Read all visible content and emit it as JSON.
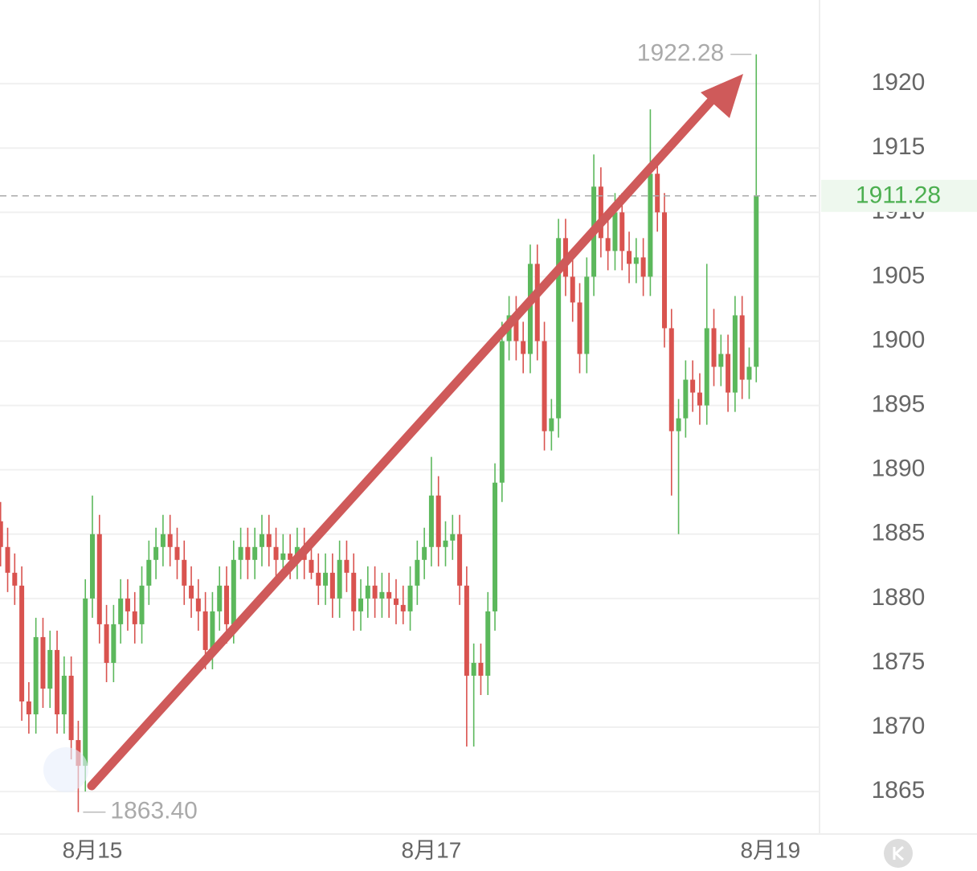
{
  "chart_data": {
    "type": "candlestick",
    "categories": [
      null,
      null,
      null,
      null,
      null,
      null,
      null,
      null,
      null,
      null,
      null,
      null,
      null,
      "8月15",
      null,
      null,
      null,
      null,
      null,
      null,
      null,
      null,
      null,
      null,
      null,
      null,
      null,
      null,
      null,
      null,
      null,
      null,
      null,
      null,
      null,
      null,
      null,
      null,
      null,
      null,
      null,
      null,
      null,
      null,
      null,
      null,
      null,
      null,
      null,
      null,
      null,
      null,
      null,
      null,
      null,
      null,
      null,
      null,
      null,
      null,
      null,
      "8月17",
      null,
      null,
      null,
      null,
      null,
      null,
      null,
      null,
      null,
      null,
      null,
      null,
      null,
      null,
      null,
      null,
      null,
      null,
      null,
      null,
      null,
      null,
      null,
      null,
      null,
      null,
      null,
      null,
      null,
      null,
      null,
      null,
      null,
      null,
      null,
      null,
      null,
      null,
      null,
      null,
      null,
      null,
      null,
      null,
      null,
      null,
      null,
      "8月19"
    ],
    "open": [
      1886,
      1884,
      1882,
      1881,
      1872,
      1871,
      1877,
      1873,
      1876,
      1871,
      1874,
      1869,
      1867,
      1880,
      1885,
      1878,
      1875,
      1878,
      1880,
      1879,
      1878,
      1881,
      1883,
      1884,
      1885,
      1884,
      1883,
      1881,
      1880,
      1879,
      1876,
      1879,
      1881,
      1878,
      1883,
      1884,
      1883,
      1884,
      1885,
      1884,
      1883,
      1883.5,
      1883,
      1884,
      1883,
      1882,
      1881,
      1882,
      1880,
      1883,
      1882,
      1879,
      1880,
      1881,
      1880,
      1880.5,
      1880,
      1879.5,
      1879,
      1881,
      1883,
      1884,
      1888,
      1884,
      1884.5,
      1885,
      1881,
      1874,
      1875,
      1874,
      1879,
      1889,
      1900,
      1902,
      1900,
      1899,
      1906,
      1900,
      1893,
      1894,
      1908,
      1905,
      1903,
      1899,
      1905,
      1912,
      1908,
      1907,
      1910,
      1907,
      1906,
      1906.5,
      1905,
      1913,
      1910,
      1901,
      1893,
      1894,
      1897,
      1896,
      1895,
      1901,
      1898,
      1899,
      1896,
      1902,
      1897,
      1898,
      null,
      null
    ],
    "high": [
      1887.5,
      1885.5,
      1883.5,
      1882.5,
      1873.5,
      1878.5,
      1878.5,
      1877.5,
      1877.5,
      1875.5,
      1875.5,
      1870.5,
      1881.5,
      1888,
      1886.5,
      1879.5,
      1879.5,
      1881.5,
      1881.5,
      1880.5,
      1882.5,
      1884.5,
      1885.5,
      1886.5,
      1886.5,
      1885.5,
      1884.5,
      1882.5,
      1881.5,
      1880.5,
      1880.5,
      1882.5,
      1882.5,
      1884.5,
      1885.5,
      1885.5,
      1885.5,
      1886.5,
      1886.5,
      1885.5,
      1885,
      1885,
      1885.5,
      1885.5,
      1884.5,
      1883.5,
      1883.5,
      1883.5,
      1884.5,
      1884.5,
      1883.5,
      1881.5,
      1882.5,
      1882.5,
      1882,
      1882,
      1881.5,
      1881,
      1882.5,
      1884.5,
      1885.5,
      1891,
      1889.5,
      1886,
      1886.5,
      1886.5,
      1882.5,
      1876.5,
      1876.5,
      1880.5,
      1890.5,
      1901.5,
      1903.5,
      1903.5,
      1901.5,
      1907.5,
      1907.5,
      1901.5,
      1895.5,
      1909.5,
      1909.5,
      1906.5,
      1904.5,
      1906.5,
      1914.5,
      1913.5,
      1909.5,
      1911.5,
      1911.5,
      1908.5,
      1908,
      1908,
      1918,
      1914.5,
      1911.5,
      1902.5,
      1895.5,
      1898.5,
      1898.5,
      1897.5,
      1906,
      1902.5,
      1900.5,
      1900.5,
      1903.5,
      1903.5,
      1899.5,
      1922.28,
      null,
      null
    ],
    "low": [
      1882.5,
      1880.5,
      1879.5,
      1870.5,
      1869.5,
      1869.5,
      1871.5,
      1871.5,
      1869.5,
      1869.5,
      1867.5,
      1863.4,
      1865,
      1878.5,
      1876.5,
      1873.5,
      1873.5,
      1876.5,
      1877.5,
      1876.5,
      1876.5,
      1879.5,
      1881.5,
      1882.5,
      1882.5,
      1881.5,
      1879.5,
      1878.5,
      1877.5,
      1874.5,
      1874.5,
      1877.5,
      1876.5,
      1876.5,
      1881.5,
      1881.5,
      1881.5,
      1882.5,
      1882.5,
      1881.5,
      1881.5,
      1881.5,
      1881.5,
      1881.5,
      1881.5,
      1879.5,
      1879.5,
      1878.5,
      1878.5,
      1880.5,
      1877.5,
      1877.5,
      1878.5,
      1878.5,
      1878.5,
      1878.5,
      1878,
      1878,
      1877.5,
      1879.5,
      1881.5,
      1882.5,
      1882.5,
      1882.5,
      1883,
      1879.5,
      1868.5,
      1868.5,
      1872.5,
      1872.5,
      1877.5,
      1887.5,
      1898.5,
      1898.5,
      1897.5,
      1897.5,
      1898.5,
      1891.5,
      1891.5,
      1892.5,
      1903.5,
      1901.5,
      1897.5,
      1897.5,
      1903.5,
      1906.5,
      1905.5,
      1905.5,
      1905.5,
      1904.5,
      1904.5,
      1903.5,
      1903.5,
      1908.5,
      1899.5,
      1888,
      1885,
      1892.5,
      1894.5,
      1893.5,
      1893.5,
      1896.5,
      1896.5,
      1894.5,
      1894.5,
      1895.5,
      1895.5,
      1896.8,
      null,
      null
    ],
    "close": [
      1884,
      1882,
      1881,
      1872,
      1871,
      1877,
      1873,
      1876,
      1871,
      1874,
      1869,
      1867,
      1880,
      1885,
      1878,
      1875,
      1878,
      1880,
      1879,
      1878,
      1881,
      1883,
      1884,
      1885,
      1884,
      1883,
      1881,
      1880,
      1879,
      1876,
      1879,
      1881,
      1878,
      1883,
      1884,
      1883,
      1884,
      1885,
      1884,
      1883,
      1883.5,
      1883,
      1884,
      1883,
      1882,
      1881,
      1882,
      1880,
      1883,
      1882,
      1879,
      1880,
      1881,
      1880,
      1880.5,
      1880,
      1879.5,
      1879,
      1881,
      1883,
      1884,
      1888,
      1884,
      1884.5,
      1885,
      1881,
      1874,
      1875,
      1874,
      1879,
      1889,
      1900,
      1902,
      1900,
      1899,
      1906,
      1900,
      1893,
      1894,
      1908,
      1905,
      1903,
      1899,
      1905,
      1912,
      1908,
      1907,
      1910,
      1907,
      1906,
      1906.5,
      1905,
      1913,
      1910,
      1901,
      1893,
      1894,
      1897,
      1896,
      1895,
      1901,
      1898,
      1899,
      1896,
      1902,
      1897,
      1898,
      1911.28,
      null,
      null
    ],
    "up_color": "#5cb85c",
    "down_color": "#d9534f",
    "ylim": [
      1861.7,
      1926.5
    ],
    "yticks": [
      1865,
      1870,
      1875,
      1880,
      1885,
      1890,
      1895,
      1900,
      1905,
      1910,
      1915,
      1920
    ],
    "grid": true,
    "max_label": 1922.28,
    "min_label": {
      "value": 1863.4,
      "label": "1863.40"
    },
    "last_price": 1911.28
  }
}
